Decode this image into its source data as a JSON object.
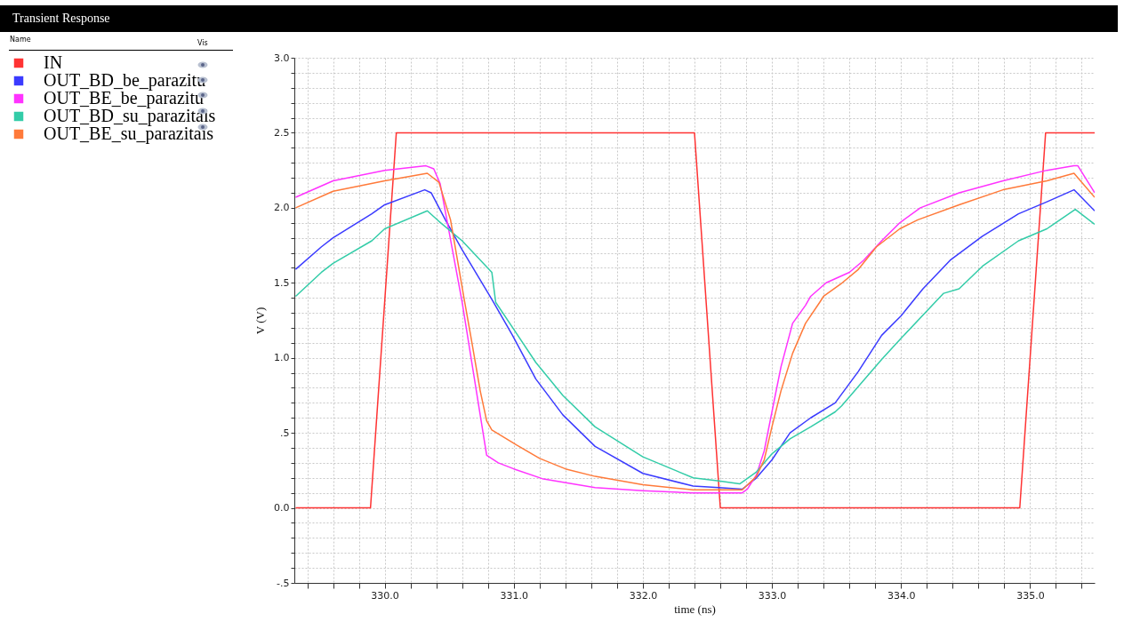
{
  "chart_data": {
    "type": "line",
    "title": "Transient Response",
    "xlabel": "time (ns)",
    "ylabel": "V (V)",
    "legend_title": "Name",
    "annotations": [
      "Vis"
    ],
    "xlim": [
      329.3,
      335.5
    ],
    "xticks": [
      {
        "value": 329.4,
        "label": null
      },
      {
        "value": 329.6,
        "label": null
      },
      {
        "value": 329.8,
        "label": null
      },
      {
        "value": 330,
        "label": "330.0"
      },
      {
        "value": 330.2,
        "label": null
      },
      {
        "value": 330.4,
        "label": null
      },
      {
        "value": 330.6,
        "label": null
      },
      {
        "value": 330.8,
        "label": null
      },
      {
        "value": 331,
        "label": "331.0"
      },
      {
        "value": 331.2,
        "label": null
      },
      {
        "value": 331.4,
        "label": null
      },
      {
        "value": 331.6,
        "label": null
      },
      {
        "value": 331.8,
        "label": null
      },
      {
        "value": 332,
        "label": "332.0"
      },
      {
        "value": 332.2,
        "label": null
      },
      {
        "value": 332.4,
        "label": null
      },
      {
        "value": 332.6,
        "label": null
      },
      {
        "value": 332.8,
        "label": null
      },
      {
        "value": 333,
        "label": "333.0"
      },
      {
        "value": 333.2,
        "label": null
      },
      {
        "value": 333.4,
        "label": null
      },
      {
        "value": 333.6,
        "label": null
      },
      {
        "value": 333.8,
        "label": null
      },
      {
        "value": 334,
        "label": "334.0"
      },
      {
        "value": 334.2,
        "label": null
      },
      {
        "value": 334.4,
        "label": null
      },
      {
        "value": 334.6,
        "label": null
      },
      {
        "value": 334.8,
        "label": null
      },
      {
        "value": 335,
        "label": "335.0"
      },
      {
        "value": 335.2,
        "label": null
      },
      {
        "value": 335.4,
        "label": null
      }
    ],
    "ylim": [
      -0.5,
      3.0
    ],
    "yticks": [
      {
        "value": -0.5,
        "label": "-.5"
      },
      {
        "value": -0.4,
        "label": null
      },
      {
        "value": -0.3,
        "label": null
      },
      {
        "value": -0.2,
        "label": null
      },
      {
        "value": -0.1,
        "label": null
      },
      {
        "value": 0,
        "label": "0.0"
      },
      {
        "value": 0.1,
        "label": null
      },
      {
        "value": 0.2,
        "label": null
      },
      {
        "value": 0.3,
        "label": null
      },
      {
        "value": 0.4,
        "label": null
      },
      {
        "value": 0.5,
        "label": ".5"
      },
      {
        "value": 0.6,
        "label": null
      },
      {
        "value": 0.7,
        "label": null
      },
      {
        "value": 0.8,
        "label": null
      },
      {
        "value": 0.9,
        "label": null
      },
      {
        "value": 1,
        "label": "1.0"
      },
      {
        "value": 1.1,
        "label": null
      },
      {
        "value": 1.2,
        "label": null
      },
      {
        "value": 1.3,
        "label": null
      },
      {
        "value": 1.4,
        "label": null
      },
      {
        "value": 1.5,
        "label": "1.5"
      },
      {
        "value": 1.6,
        "label": null
      },
      {
        "value": 1.7,
        "label": null
      },
      {
        "value": 1.8,
        "label": null
      },
      {
        "value": 1.9,
        "label": null
      },
      {
        "value": 2,
        "label": "2.0"
      },
      {
        "value": 2.1,
        "label": null
      },
      {
        "value": 2.2,
        "label": null
      },
      {
        "value": 2.3,
        "label": null
      },
      {
        "value": 2.4,
        "label": null
      },
      {
        "value": 2.5,
        "label": "2.5"
      },
      {
        "value": 2.6,
        "label": null
      },
      {
        "value": 2.7,
        "label": null
      },
      {
        "value": 2.8,
        "label": null
      },
      {
        "value": 2.9,
        "label": null
      },
      {
        "value": 3,
        "label": "3.0"
      }
    ],
    "grid": true,
    "legend": "left",
    "marker": "none",
    "line_style": "solid",
    "series": [
      {
        "name": "IN",
        "color": "#ff3333",
        "x": [
          329.31,
          329.89,
          330.09,
          332.4,
          332.6,
          334.92,
          335.12,
          335.5
        ],
        "values": [
          0,
          0,
          2.5,
          2.5,
          0,
          0,
          2.5,
          2.5
        ]
      },
      {
        "name": "OUT_BD_be_parazitu",
        "color": "#3b3bff",
        "x": [
          329.31,
          329.51,
          329.6,
          329.9,
          330.0,
          330.31,
          330.36,
          330.47,
          330.6,
          330.83,
          330.99,
          331.17,
          331.38,
          331.63,
          332.0,
          332.39,
          332.59,
          332.77,
          332.88,
          333.0,
          333.14,
          333.3,
          333.49,
          333.67,
          333.85,
          334.0,
          334.17,
          334.38,
          334.63,
          334.91,
          335.13,
          335.34,
          335.5
        ],
        "values": [
          1.59,
          1.74,
          1.8,
          1.96,
          2.02,
          2.12,
          2.1,
          1.92,
          1.72,
          1.39,
          1.15,
          0.86,
          0.62,
          0.41,
          0.23,
          0.145,
          0.135,
          0.125,
          0.2,
          0.32,
          0.5,
          0.6,
          0.7,
          0.91,
          1.15,
          1.28,
          1.46,
          1.65,
          1.81,
          1.96,
          2.04,
          2.12,
          1.98
        ]
      },
      {
        "name": "OUT_BE_be_parazitu",
        "color": "#ff33ff",
        "x": [
          329.31,
          329.6,
          330.0,
          330.32,
          330.38,
          330.43,
          330.6,
          330.79,
          330.88,
          331.0,
          331.22,
          331.63,
          332.0,
          332.39,
          332.77,
          332.81,
          332.88,
          332.94,
          333.0,
          333.07,
          333.16,
          333.26,
          333.3,
          333.42,
          333.6,
          333.71,
          333.85,
          333.99,
          334.15,
          334.45,
          334.79,
          335.13,
          335.34,
          335.37,
          335.5
        ],
        "values": [
          2.07,
          2.18,
          2.25,
          2.28,
          2.26,
          2.16,
          1.37,
          0.35,
          0.3,
          0.26,
          0.195,
          0.135,
          0.115,
          0.1,
          0.1,
          0.125,
          0.22,
          0.38,
          0.64,
          0.94,
          1.23,
          1.35,
          1.41,
          1.5,
          1.57,
          1.65,
          1.78,
          1.9,
          2.0,
          2.1,
          2.18,
          2.25,
          2.28,
          2.28,
          2.1
        ]
      },
      {
        "name": "OUT_BD_su_parazitais",
        "color": "#33cca8",
        "x": [
          329.31,
          329.51,
          329.6,
          329.9,
          330.0,
          330.33,
          330.42,
          330.6,
          330.83,
          330.86,
          331.0,
          331.17,
          331.38,
          331.63,
          332.0,
          332.39,
          332.59,
          332.75,
          332.88,
          333.0,
          333.14,
          333.3,
          333.49,
          333.54,
          333.85,
          334.0,
          334.33,
          334.45,
          334.63,
          334.91,
          335.13,
          335.35,
          335.5
        ],
        "values": [
          1.41,
          1.57,
          1.63,
          1.78,
          1.86,
          1.98,
          1.91,
          1.78,
          1.57,
          1.37,
          1.19,
          0.97,
          0.75,
          0.54,
          0.34,
          0.2,
          0.18,
          0.16,
          0.24,
          0.36,
          0.46,
          0.54,
          0.64,
          0.68,
          0.99,
          1.13,
          1.43,
          1.46,
          1.61,
          1.78,
          1.86,
          1.99,
          1.89
        ]
      },
      {
        "name": "OUT_BE_su_parazitais",
        "color": "#ff7a3a",
        "x": [
          329.31,
          329.6,
          330.0,
          330.33,
          330.42,
          330.51,
          330.56,
          330.62,
          330.67,
          330.74,
          330.79,
          330.83,
          331.02,
          331.2,
          331.4,
          331.63,
          332.0,
          332.39,
          332.77,
          332.88,
          332.94,
          333.0,
          333.07,
          333.16,
          333.26,
          333.37,
          333.4,
          333.53,
          333.67,
          333.81,
          333.99,
          334.13,
          334.45,
          334.79,
          335.13,
          335.34,
          335.5
        ],
        "values": [
          2.0,
          2.11,
          2.18,
          2.23,
          2.17,
          1.92,
          1.67,
          1.37,
          1.13,
          0.78,
          0.58,
          0.52,
          0.42,
          0.33,
          0.26,
          0.21,
          0.155,
          0.12,
          0.12,
          0.21,
          0.32,
          0.54,
          0.78,
          1.03,
          1.23,
          1.37,
          1.41,
          1.49,
          1.59,
          1.74,
          1.86,
          1.92,
          2.02,
          2.12,
          2.18,
          2.23,
          2.07
        ]
      }
    ]
  }
}
